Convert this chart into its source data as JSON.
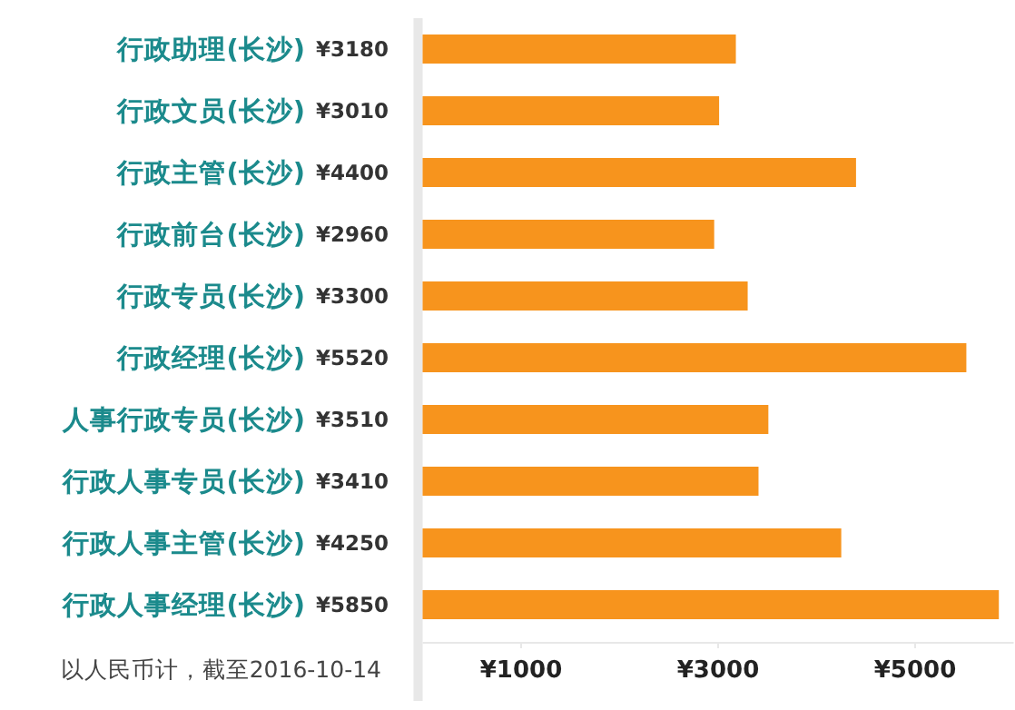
{
  "chart_data": {
    "type": "bar",
    "orientation": "horizontal",
    "categories": [
      "行政助理(长沙)",
      "行政文员(长沙)",
      "行政主管(长沙)",
      "行政前台(长沙)",
      "行政专员(长沙)",
      "行政经理(长沙)",
      "人事行政专员(长沙)",
      "行政人事专员(长沙)",
      "行政人事主管(长沙)",
      "行政人事经理(长沙)"
    ],
    "values": [
      3180,
      3010,
      4400,
      2960,
      3300,
      5520,
      3510,
      3410,
      4250,
      5850
    ],
    "value_labels": [
      "¥3180",
      "¥3010",
      "¥4400",
      "¥2960",
      "¥3300",
      "¥5520",
      "¥3510",
      "¥3410",
      "¥4250",
      "¥5850"
    ],
    "color": "#f7941d",
    "xlim": [
      0,
      6000
    ],
    "xticks": [
      {
        "value": 1000,
        "label": "¥1000"
      },
      {
        "value": 3000,
        "label": "¥3000"
      },
      {
        "value": 5000,
        "label": "¥5000"
      }
    ],
    "annotations": [
      "以人民币计，截至2016-10-14"
    ]
  }
}
